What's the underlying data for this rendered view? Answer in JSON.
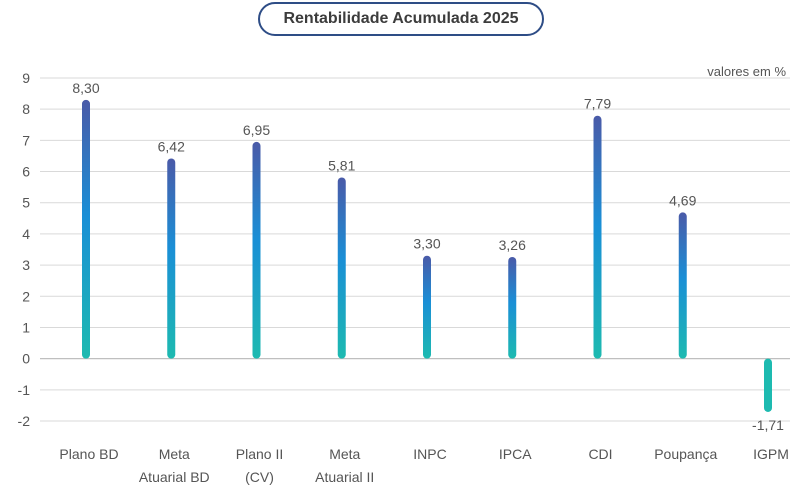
{
  "chart_data": {
    "type": "bar",
    "title": "Rentabilidade Acumulada 2025",
    "unit_note": "valores em %",
    "categories": [
      [
        "Plano BD"
      ],
      [
        "Meta",
        "Atuarial BD"
      ],
      [
        "Plano II",
        "(CV)"
      ],
      [
        "Meta",
        "Atuarial II"
      ],
      [
        "INPC"
      ],
      [
        "IPCA"
      ],
      [
        "CDI"
      ],
      [
        "Poupança"
      ],
      [
        "IGPM"
      ]
    ],
    "values": [
      8.3,
      6.42,
      6.95,
      5.81,
      3.3,
      3.26,
      7.79,
      4.69,
      -1.71
    ],
    "value_labels": [
      "8,30",
      "6,42",
      "6,95",
      "5,81",
      "3,30",
      "3,26",
      "7,79",
      "4,69",
      "-1,71"
    ],
    "yticks": [
      "9",
      "8",
      "7",
      "6",
      "5",
      "4",
      "3",
      "2",
      "1",
      "0",
      "-1",
      "-2"
    ],
    "ylim": [
      -2,
      9
    ],
    "grid": true,
    "colors": {
      "bar_top": "#4a5aa8",
      "bar_mid": "#1a8fd6",
      "bar_bottom": "#1dbab0",
      "grid": "#d9d9d9",
      "title_border": "#2e4d86",
      "text": "#555555"
    }
  }
}
